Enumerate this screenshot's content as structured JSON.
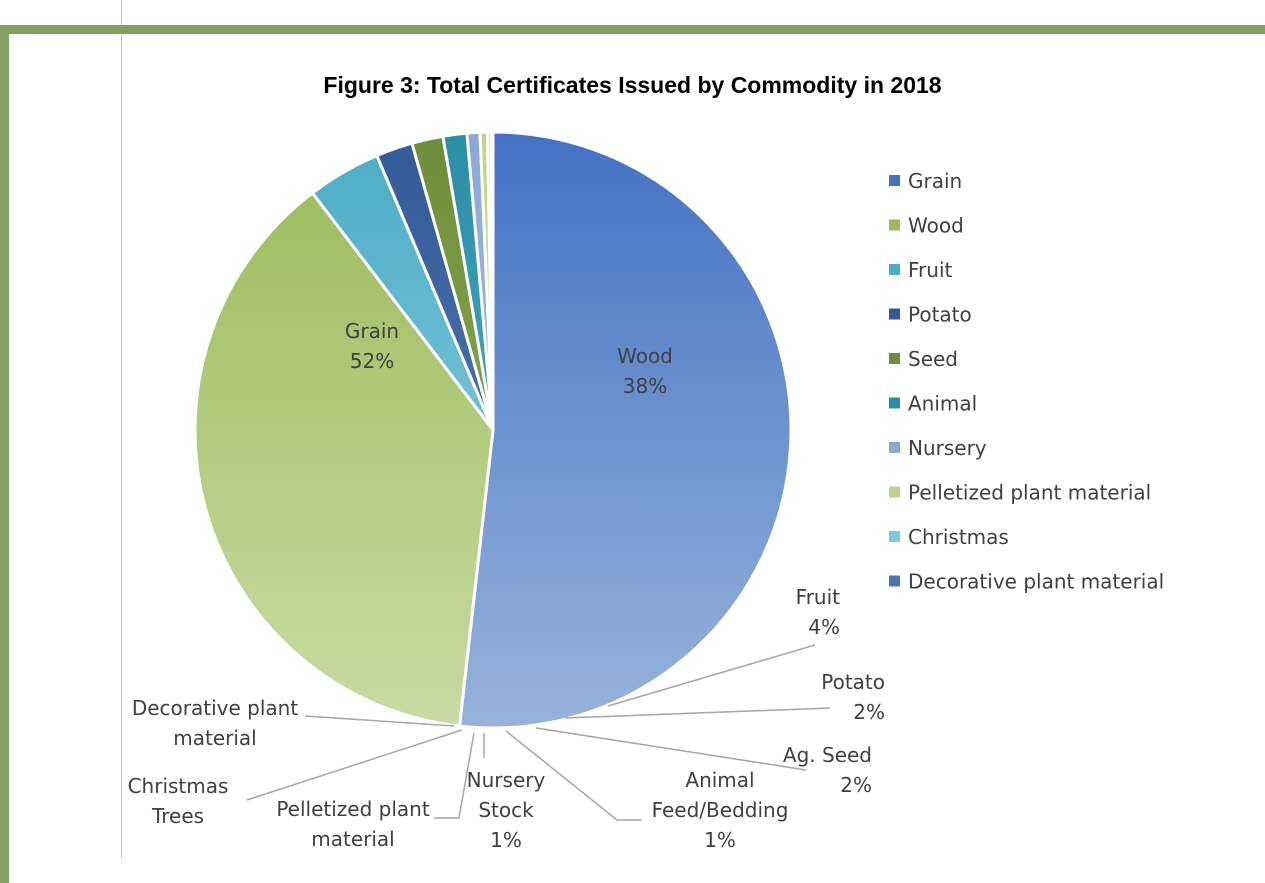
{
  "chart_data": {
    "type": "pie",
    "title": "Figure 3: Total Certificates Issued by Commodity in 2018",
    "legend_position": "right",
    "slices": [
      {
        "legend": "Grain",
        "label": [
          "Grain",
          "52%"
        ],
        "value": 52,
        "colors": [
          "#4472c4",
          "#97b3da"
        ]
      },
      {
        "legend": "Wood",
        "label": [
          "Wood",
          "38%"
        ],
        "value": 38,
        "colors": [
          "#9bbb59",
          "#c8dba4"
        ]
      },
      {
        "legend": "Fruit",
        "label": [
          "Fruit",
          "4%"
        ],
        "value": 4,
        "colors": [
          "#4bacc6",
          "#9dd4e2"
        ]
      },
      {
        "legend": "Potato",
        "label": [
          "Potato",
          "2%"
        ],
        "value": 2,
        "colors": [
          "#335a94",
          "#5f86c0"
        ]
      },
      {
        "legend": "Seed",
        "label": [
          "Ag. Seed",
          "2%"
        ],
        "value": 1.7,
        "colors": [
          "#6f8d3a",
          "#9ab95e"
        ]
      },
      {
        "legend": "Animal",
        "label": [
          "Animal",
          "Feed/Bedding",
          "1%"
        ],
        "value": 1.3,
        "colors": [
          "#2a8ea5",
          "#62b7cc"
        ]
      },
      {
        "legend": "Nursery",
        "label": [
          "Nursery",
          "Stock",
          "1%"
        ],
        "value": 0.7,
        "colors": [
          "#8ea8d6",
          "#b3c6e8"
        ]
      },
      {
        "legend": "Pelletized plant material",
        "label": [
          "Pelletized plant",
          "material"
        ],
        "value": 0.4,
        "colors": [
          "#bcd58a",
          "#d7e8b6"
        ]
      },
      {
        "legend": "Christmas",
        "label": [
          "Christmas",
          "Trees"
        ],
        "value": 0.2,
        "colors": [
          "#7fc8dc",
          "#b2dfeb"
        ]
      },
      {
        "legend": "Decorative plant material",
        "label": [
          "Decorative plant",
          "material"
        ],
        "value": 0.1,
        "colors": [
          "#4f74b6",
          "#7f9fd4"
        ]
      }
    ]
  }
}
